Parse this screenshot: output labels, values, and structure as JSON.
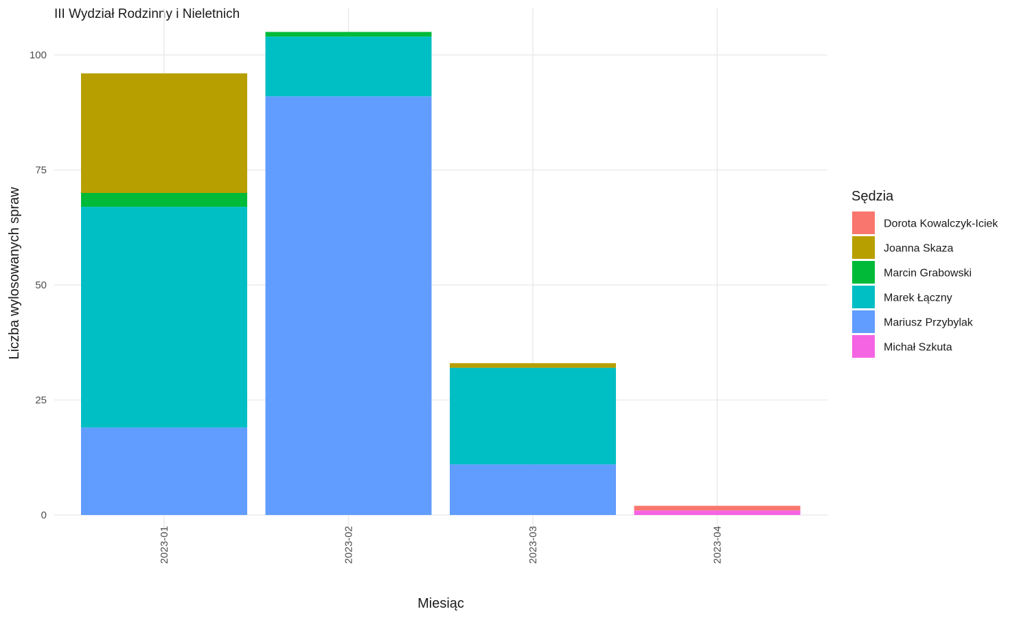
{
  "chart_data": {
    "type": "bar",
    "stacked": true,
    "title": "III Wydział Rodzinny i Nieletnich",
    "xlabel": "Miesiąc",
    "ylabel": "Liczba wylosowanych spraw",
    "categories": [
      "2023-01",
      "2023-02",
      "2023-03",
      "2023-04"
    ],
    "ylim": [
      0,
      105
    ],
    "yticks": [
      0,
      25,
      50,
      75,
      100
    ],
    "legend_title": "Sędzia",
    "legend_position": "right",
    "grid": true,
    "series": [
      {
        "name": "Dorota Kowalczyk-Iciek",
        "color": "#F8766D",
        "values": [
          0,
          0,
          0,
          1
        ]
      },
      {
        "name": "Joanna Skaza",
        "color": "#B79F00",
        "values": [
          26,
          0,
          1,
          0
        ]
      },
      {
        "name": "Marcin Grabowski",
        "color": "#00BA38",
        "values": [
          3,
          1,
          0,
          0
        ]
      },
      {
        "name": "Marek Łączny",
        "color": "#00BFC4",
        "values": [
          48,
          13,
          21,
          0
        ]
      },
      {
        "name": "Mariusz Przybylak",
        "color": "#619CFF",
        "values": [
          19,
          91,
          11,
          0
        ]
      },
      {
        "name": "Michał Szkuta",
        "color": "#F564E3",
        "values": [
          0,
          0,
          0,
          1
        ]
      }
    ]
  }
}
